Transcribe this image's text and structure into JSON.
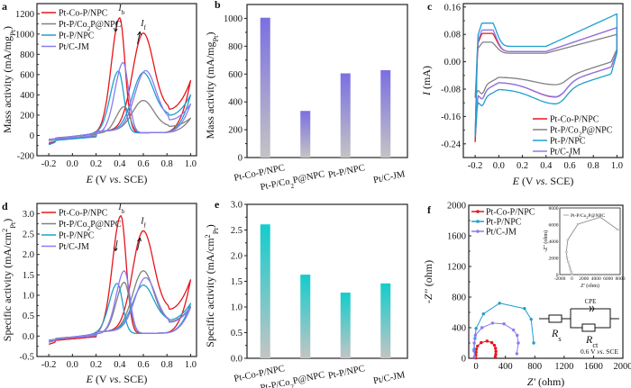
{
  "figure": {
    "colors": {
      "pt_co_p_npc": "#e8141b",
      "pt_p_co2p_npc": "#808080",
      "pt_p_npc": "#1e9fd0",
      "pt_c_jm": "#8a7cf0",
      "bar_b_top": "#7b6fe2",
      "bar_e_top": "#14cccc",
      "bar_bottom": "#c4c4c4"
    },
    "series_names": [
      "Pt-Co-P/NPC",
      "Pt-P/Co₂P@NPC",
      "Pt-P/NPC",
      "Pt/C-JM"
    ]
  },
  "chart_data": [
    {
      "panel": "a",
      "type": "line",
      "title": "",
      "xlabel": "E (V vs. SCE)",
      "ylabel": "Mass activity (mA/mg_Pt)",
      "xlim": [
        -0.3,
        1.05
      ],
      "ylim": [
        -200,
        1300
      ],
      "xticks": [
        -0.2,
        0.0,
        0.2,
        0.4,
        0.6,
        0.8,
        1.0
      ],
      "xtick_labels": [
        "-0.2",
        "0.0",
        "0.2",
        "0.4",
        "0.6",
        "0.8",
        "1.0"
      ],
      "yticks": [
        -200,
        0,
        200,
        400,
        600,
        800,
        1000,
        1200
      ],
      "ytick_labels": [
        "-200",
        "0",
        "200",
        "400",
        "600",
        "800",
        "1000",
        "1200"
      ],
      "legend": "top-left",
      "annotations": [
        {
          "text": "I_b",
          "x": 0.42,
          "y": 1230
        },
        {
          "text": "I_f",
          "x": 0.61,
          "y": 1080
        }
      ],
      "series": [
        {
          "name": "Pt-Co-P/NPC",
          "forward_peak": {
            "x": 0.6,
            "y": 1010
          },
          "backward_peak": {
            "x": 0.4,
            "y": 1160
          },
          "start": -80,
          "end": 540,
          "valley": 260
        },
        {
          "name": "Pt-P/Co2P@NPC",
          "forward_peak": {
            "x": 0.6,
            "y": 345
          },
          "backward_peak": {
            "x": 0.44,
            "y": 285
          },
          "start": -50,
          "end": 170,
          "valley": 90
        },
        {
          "name": "Pt-P/NPC",
          "forward_peak": {
            "x": 0.6,
            "y": 620
          },
          "backward_peak": {
            "x": 0.39,
            "y": 635
          },
          "start": -90,
          "end": 400,
          "valley": 200
        },
        {
          "name": "Pt/C-JM",
          "forward_peak": {
            "x": 0.62,
            "y": 640
          },
          "backward_peak": {
            "x": 0.43,
            "y": 720
          },
          "start": -70,
          "end": 310,
          "valley": 155
        }
      ]
    },
    {
      "panel": "b",
      "type": "bar",
      "title": "",
      "xlabel": "",
      "ylabel": "Mass activity (mA/mg_Pt)",
      "ylim": [
        0,
        1100
      ],
      "yticks": [
        0,
        200,
        400,
        600,
        800,
        1000
      ],
      "ytick_labels": [
        "0",
        "200",
        "400",
        "600",
        "800",
        "1000"
      ],
      "categories": [
        "Pt-Co-P/NPC",
        "Pt-P/Co₂P@NPC",
        "Pt-P/NPC",
        "Pt/C-JM"
      ],
      "values": [
        1005,
        335,
        605,
        628
      ]
    },
    {
      "panel": "c",
      "type": "line",
      "title": "",
      "xlabel": "E (V vs. SCE)",
      "ylabel": "I (mA)",
      "xlim": [
        -0.3,
        1.05
      ],
      "ylim": [
        -0.28,
        0.17
      ],
      "xticks": [
        -0.2,
        0.0,
        0.2,
        0.4,
        0.6,
        0.8,
        1.0
      ],
      "xtick_labels": [
        "-0.2",
        "0.0",
        "0.2",
        "0.4",
        "0.6",
        "0.8",
        "1.0"
      ],
      "yticks": [
        -0.24,
        -0.16,
        -0.08,
        0.0,
        0.08,
        0.16
      ],
      "ytick_labels": [
        "-0.24",
        "-0.16",
        "-0.08",
        "0.00",
        "0.08",
        "0.16"
      ],
      "legend": "bottom-right",
      "series": [
        {
          "name": "Pt-Co-P/NPC",
          "h_peak": 0.078,
          "dl_top": 0.03,
          "top_end": 0.1,
          "red_peak": -0.103,
          "low_end": -0.235
        },
        {
          "name": "Pt-P/Co2P@NPC",
          "h_peak": 0.052,
          "dl_top": 0.025,
          "top_end": 0.08,
          "red_peak": -0.067,
          "low_end": -0.105
        },
        {
          "name": "Pt-P/NPC",
          "h_peak": 0.108,
          "dl_top": 0.045,
          "top_end": 0.14,
          "red_peak": -0.123,
          "low_end": -0.22
        },
        {
          "name": "Pt/C-JM",
          "h_peak": 0.088,
          "dl_top": 0.03,
          "top_end": 0.1,
          "red_peak": -0.102,
          "low_end": -0.215
        }
      ]
    },
    {
      "panel": "d",
      "type": "line",
      "title": "",
      "xlabel": "E (V vs. SCE)",
      "ylabel": "Specific activity (mA/cm²_Pt)",
      "xlim": [
        -0.3,
        1.05
      ],
      "ylim": [
        -0.5,
        3.25
      ],
      "xticks": [
        -0.2,
        0.0,
        0.2,
        0.4,
        0.6,
        0.8,
        1.0
      ],
      "xtick_labels": [
        "-0.2",
        "0.0",
        "0.2",
        "0.4",
        "0.6",
        "0.8",
        "1.0"
      ],
      "yticks": [
        -0.5,
        0.0,
        0.5,
        1.0,
        1.5,
        2.0,
        2.5,
        3.0
      ],
      "ytick_labels": [
        "-0.5",
        "0.0",
        "0.5",
        "1.0",
        "1.5",
        "2.0",
        "2.5",
        "3.0"
      ],
      "legend": "top-left",
      "annotations": [
        {
          "text": "I_b",
          "x": 0.42,
          "y": 3.1
        },
        {
          "text": "I_f",
          "x": 0.61,
          "y": 2.75
        }
      ],
      "series": [
        {
          "name": "Pt-Co-P/NPC",
          "forward_peak": {
            "x": 0.6,
            "y": 2.58
          },
          "backward_peak": {
            "x": 0.41,
            "y": 2.95
          },
          "start": -0.2,
          "end": 1.38,
          "valley": 0.66
        },
        {
          "name": "Pt-P/Co2P@NPC",
          "forward_peak": {
            "x": 0.6,
            "y": 1.6
          },
          "backward_peak": {
            "x": 0.44,
            "y": 1.32
          },
          "start": -0.12,
          "end": 0.72,
          "valley": 0.36
        },
        {
          "name": "Pt-P/NPC",
          "forward_peak": {
            "x": 0.6,
            "y": 1.25
          },
          "backward_peak": {
            "x": 0.38,
            "y": 1.29
          },
          "start": -0.15,
          "end": 0.8,
          "valley": 0.4
        },
        {
          "name": "Pt/C-JM",
          "forward_peak": {
            "x": 0.62,
            "y": 1.43
          },
          "backward_peak": {
            "x": 0.44,
            "y": 1.6
          },
          "start": -0.15,
          "end": 0.7,
          "valley": 0.34
        }
      ]
    },
    {
      "panel": "e",
      "type": "bar",
      "title": "",
      "xlabel": "",
      "ylabel": "Specific activity (mA/cm²_Pt)",
      "ylim": [
        0,
        3.0
      ],
      "yticks": [
        0.0,
        0.5,
        1.0,
        1.5,
        2.0,
        2.5,
        3.0
      ],
      "ytick_labels": [
        "0.0",
        "0.5",
        "1.0",
        "1.5",
        "2.0",
        "2.5",
        "3.0"
      ],
      "categories": [
        "Pt-Co-P/NPC",
        "Pt-P/Co₂P@NPC",
        "Pt-P/NPC",
        "Pt/C-JM"
      ],
      "values": [
        2.61,
        1.63,
        1.28,
        1.46
      ]
    },
    {
      "panel": "f",
      "type": "scatter",
      "title": "",
      "xlabel": "Z' (ohm)",
      "ylabel": "-Z'' (ohm)",
      "xlim": [
        -100,
        2000
      ],
      "ylim": [
        0,
        2000
      ],
      "xticks": [
        0,
        400,
        800,
        1200,
        1600,
        2000
      ],
      "xtick_labels": [
        "0",
        "400",
        "800",
        "1200",
        "1600",
        "2000"
      ],
      "yticks": [
        0,
        400,
        800,
        1200,
        1600,
        2000
      ],
      "ytick_labels": [
        "0",
        "400",
        "800",
        "1200",
        "1600",
        "2000"
      ],
      "legend": "top-left",
      "series": [
        {
          "name": "Pt-Co-P/NPC",
          "x": [
            -5,
            -3,
            0,
            5,
            20,
            70,
            150,
            215,
            250,
            265,
            270,
            268,
            262
          ],
          "y": [
            5,
            40,
            80,
            120,
            160,
            205,
            225,
            205,
            170,
            130,
            90,
            50,
            20
          ]
        },
        {
          "name": "Pt-P/NPC",
          "x": [
            -20,
            -25,
            -15,
            0,
            100,
            320,
            660,
            750,
            785
          ],
          "y": [
            20,
            120,
            260,
            390,
            580,
            720,
            650,
            510,
            200
          ]
        },
        {
          "name": "Pt/C-JM",
          "x": [
            -20,
            -30,
            -25,
            -10,
            80,
            225,
            380,
            510,
            560,
            575,
            555
          ],
          "y": [
            20,
            100,
            200,
            300,
            400,
            460,
            450,
            370,
            300,
            200,
            60
          ]
        }
      ],
      "inset": {
        "xlabel": "Z' (ohm)",
        "ylabel": "-Z'' (ohm)",
        "xlim": [
          -2000,
          8000
        ],
        "ylim": [
          0,
          8000
        ],
        "xticks": [
          -2000,
          0,
          2000,
          4000,
          6000,
          8000
        ],
        "xtick_labels": [
          "-2000",
          "0",
          "2000",
          "4000",
          "6000",
          "8000"
        ],
        "yticks": [
          0,
          2000,
          4000,
          6000,
          8000
        ],
        "ytick_labels": [
          "0",
          "2000",
          "4000",
          "6000",
          "8000"
        ],
        "series": {
          "name": "Pt-P/Co₂P@NPC",
          "x": [
            0,
            -100,
            -250,
            -400,
            -600,
            -800,
            -900,
            -700,
            1000,
            4700,
            7600
          ],
          "y": [
            50,
            300,
            600,
            1000,
            1500,
            2000,
            2700,
            4150,
            6050,
            6900,
            5400
          ]
        }
      },
      "circuit": {
        "cpe_label": "CPE",
        "rs_label": "R_s",
        "rct_label": "R_ct",
        "condition": "0.6 V vs. SCE"
      }
    }
  ]
}
